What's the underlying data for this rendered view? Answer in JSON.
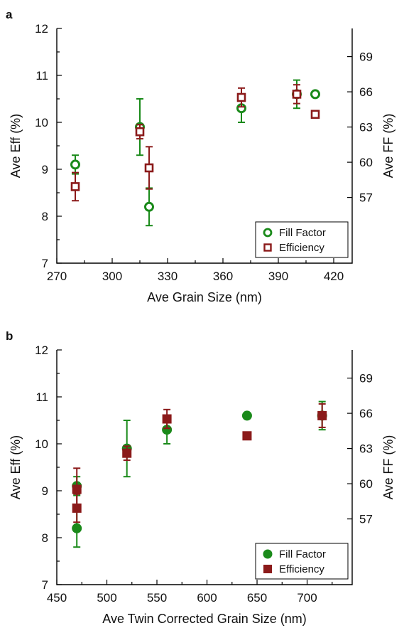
{
  "chart_data": [
    {
      "panel": "a",
      "type": "scatter",
      "xlabel": "Ave Grain Size (nm)",
      "ylabel": "Ave Eff (%)",
      "y2label": "Ave FF (%)",
      "xlim": [
        270,
        430
      ],
      "ylim": [
        7,
        12
      ],
      "y2lim": [
        51.4,
        71.4
      ],
      "xticks": [
        "270",
        "300",
        "330",
        "360",
        "390",
        "420"
      ],
      "xtick_values": [
        270,
        300,
        330,
        360,
        390,
        420
      ],
      "yticks": [
        "7",
        "8",
        "9",
        "10",
        "11",
        "12"
      ],
      "ytick_values": [
        7,
        8,
        9,
        10,
        11,
        12
      ],
      "y2ticks": [
        "57",
        "60",
        "63",
        "66",
        "69"
      ],
      "y2tick_values": [
        57,
        60,
        63,
        66,
        69
      ],
      "marker_style": "open",
      "legend_position": "bottom-right",
      "series": [
        {
          "name": "Fill Factor",
          "marker": "circle",
          "color": "#1a8a1a",
          "x": [
            280,
            315,
            320,
            370,
            400,
            410
          ],
          "y": [
            9.1,
            9.9,
            8.2,
            10.3,
            10.6,
            10.6
          ],
          "err": [
            0.2,
            0.6,
            0.4,
            0.3,
            0.3,
            0.05
          ]
        },
        {
          "name": "Efficiency",
          "marker": "square",
          "color": "#8b1a1a",
          "x": [
            280,
            315,
            320,
            370,
            400,
            410
          ],
          "y": [
            8.63,
            9.8,
            9.03,
            10.53,
            10.6,
            10.17
          ],
          "err": [
            0.3,
            0.15,
            0.45,
            0.2,
            0.2,
            0.05
          ]
        }
      ]
    },
    {
      "panel": "b",
      "type": "scatter",
      "xlabel": "Ave Twin Corrected Grain Size (nm)",
      "ylabel": "Ave Eff (%)",
      "y2label": "Ave FF (%)",
      "xlim": [
        450,
        745
      ],
      "ylim": [
        7,
        12
      ],
      "y2lim": [
        51.4,
        71.4
      ],
      "xticks": [
        "450",
        "500",
        "550",
        "600",
        "650",
        "700"
      ],
      "xtick_values": [
        450,
        500,
        550,
        600,
        650,
        700
      ],
      "yticks": [
        "7",
        "8",
        "9",
        "10",
        "11",
        "12"
      ],
      "ytick_values": [
        7,
        8,
        9,
        10,
        11,
        12
      ],
      "y2ticks": [
        "57",
        "60",
        "63",
        "66",
        "69"
      ],
      "y2tick_values": [
        57,
        60,
        63,
        66,
        69
      ],
      "marker_style": "filled",
      "legend_position": "bottom-right",
      "series": [
        {
          "name": "Fill Factor",
          "marker": "circle",
          "color": "#1a8a1a",
          "x": [
            470,
            470,
            520,
            560,
            640,
            715
          ],
          "y": [
            9.1,
            8.2,
            9.9,
            10.3,
            10.6,
            10.6
          ],
          "err": [
            0.2,
            0.4,
            0.6,
            0.3,
            0.05,
            0.3
          ]
        },
        {
          "name": "Efficiency",
          "marker": "square",
          "color": "#8b1a1a",
          "x": [
            470,
            470,
            520,
            560,
            640,
            715
          ],
          "y": [
            8.63,
            9.03,
            9.8,
            10.53,
            10.17,
            10.6
          ],
          "err": [
            0.3,
            0.45,
            0.15,
            0.2,
            0.05,
            0.25
          ]
        }
      ]
    }
  ]
}
